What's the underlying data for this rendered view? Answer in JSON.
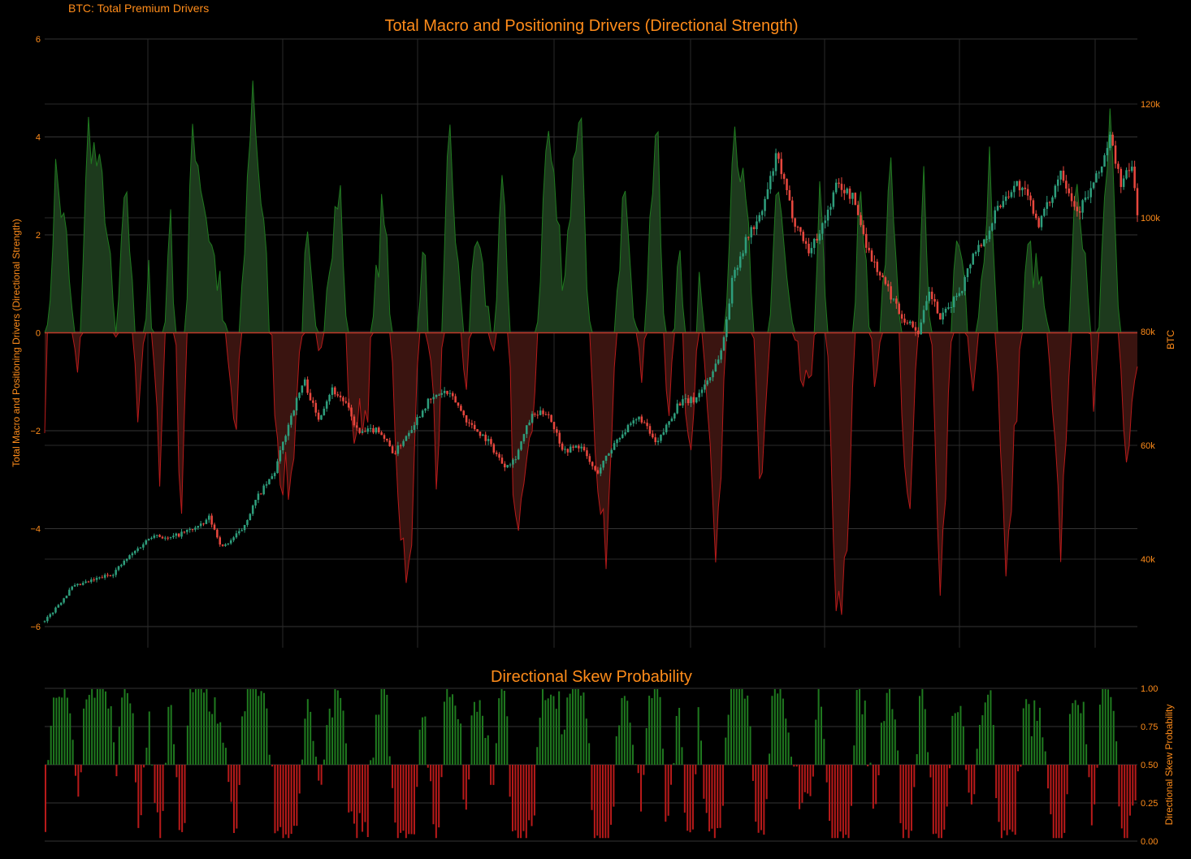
{
  "header": {
    "label": "BTC: Total Premium Drivers"
  },
  "colors": {
    "background": "#000000",
    "text": "#ff8c1a",
    "grid": "#333333",
    "positive": "#1f7a1f",
    "positive_fill": "#1d3a1d",
    "negative": "#b81a1a",
    "negative_fill": "#3a1410",
    "candle_up": "#2e9e7c",
    "candle_down": "#e8473e",
    "zero_line": "#c0392b"
  },
  "chart_data": [
    {
      "type": "area",
      "title": "Total Macro and Positioning Drivers (Directional Strength)",
      "ylabel": "Total Macro and Positioning Drivers (Directional Strength)",
      "ylim": [
        -6,
        6
      ],
      "yticks": [
        6,
        4,
        2,
        0,
        -2,
        -4,
        -6
      ],
      "ytick_labels": [
        "6",
        "4",
        "2",
        "0",
        "−2",
        "−4",
        "−6"
      ],
      "x_gridlines": 8,
      "n_points": 400,
      "anchors": [
        [
          0,
          -1.5
        ],
        [
          4,
          3.3
        ],
        [
          8,
          1.8
        ],
        [
          12,
          -1.2
        ],
        [
          16,
          4.2
        ],
        [
          22,
          2.7
        ],
        [
          26,
          -0.3
        ],
        [
          30,
          3.1
        ],
        [
          34,
          -1.5
        ],
        [
          38,
          1.1
        ],
        [
          42,
          -2.8
        ],
        [
          46,
          2.8
        ],
        [
          50,
          -3.8
        ],
        [
          54,
          4.3
        ],
        [
          60,
          2.1
        ],
        [
          64,
          0.9
        ],
        [
          70,
          -2.2
        ],
        [
          76,
          5.2
        ],
        [
          82,
          0.6
        ],
        [
          86,
          -2.7
        ],
        [
          90,
          -3.2
        ],
        [
          96,
          1.8
        ],
        [
          100,
          -0.8
        ],
        [
          104,
          1.6
        ],
        [
          108,
          3.1
        ],
        [
          112,
          -2.1
        ],
        [
          118,
          -1.5
        ],
        [
          124,
          2.9
        ],
        [
          130,
          -3.8
        ],
        [
          134,
          -5.2
        ],
        [
          138,
          2.4
        ],
        [
          144,
          -3.3
        ],
        [
          148,
          4.3
        ],
        [
          154,
          -1.2
        ],
        [
          158,
          2.2
        ],
        [
          164,
          -0.4
        ],
        [
          168,
          3.2
        ],
        [
          172,
          -4.0
        ],
        [
          178,
          -2.5
        ],
        [
          184,
          4.3
        ],
        [
          190,
          1.1
        ],
        [
          196,
          4.9
        ],
        [
          202,
          -3.6
        ],
        [
          206,
          -4.4
        ],
        [
          212,
          3.8
        ],
        [
          218,
          -1.2
        ],
        [
          224,
          4.5
        ],
        [
          228,
          -2.2
        ],
        [
          232,
          2.1
        ],
        [
          236,
          -3.1
        ],
        [
          240,
          1.6
        ],
        [
          246,
          -5.1
        ],
        [
          252,
          4.6
        ],
        [
          258,
          1.8
        ],
        [
          262,
          -3.8
        ],
        [
          268,
          3.2
        ],
        [
          274,
          -0.4
        ],
        [
          280,
          -1.5
        ],
        [
          284,
          3.0
        ],
        [
          290,
          -5.8
        ],
        [
          294,
          -4.7
        ],
        [
          298,
          3.0
        ],
        [
          304,
          -1.2
        ],
        [
          310,
          3.4
        ],
        [
          316,
          -4.0
        ],
        [
          322,
          3.2
        ],
        [
          328,
          -5.2
        ],
        [
          334,
          2.5
        ],
        [
          340,
          -1.6
        ],
        [
          346,
          3.8
        ],
        [
          352,
          -5.3
        ],
        [
          356,
          -1.2
        ],
        [
          360,
          1.7
        ],
        [
          366,
          0.6
        ],
        [
          372,
          -4.4
        ],
        [
          378,
          3.6
        ],
        [
          384,
          -1.4
        ],
        [
          390,
          4.8
        ],
        [
          396,
          -2.8
        ],
        [
          400,
          -0.7
        ]
      ],
      "candles": {
        "series": "BTC",
        "ylabel": "BTC",
        "ylim": [
          27000,
          133000
        ],
        "yticks": [
          40000,
          60000,
          80000,
          100000,
          120000
        ],
        "ytick_labels": [
          "40k",
          "60k",
          "80k",
          "100k",
          "120k"
        ],
        "n_candles": 400,
        "anchors": [
          [
            0,
            29000
          ],
          [
            10,
            35000
          ],
          [
            25,
            37500
          ],
          [
            30,
            40000
          ],
          [
            40,
            44500
          ],
          [
            45,
            43500
          ],
          [
            55,
            45500
          ],
          [
            58,
            46000
          ],
          [
            60,
            47500
          ],
          [
            65,
            42000
          ],
          [
            72,
            45000
          ],
          [
            78,
            51000
          ],
          [
            84,
            55000
          ],
          [
            90,
            65000
          ],
          [
            95,
            71500
          ],
          [
            100,
            64500
          ],
          [
            105,
            70000
          ],
          [
            110,
            67500
          ],
          [
            115,
            62000
          ],
          [
            122,
            63000
          ],
          [
            128,
            58500
          ],
          [
            134,
            63000
          ],
          [
            140,
            67500
          ],
          [
            146,
            69500
          ],
          [
            150,
            68000
          ],
          [
            155,
            64000
          ],
          [
            162,
            61000
          ],
          [
            168,
            56500
          ],
          [
            172,
            57500
          ],
          [
            178,
            65000
          ],
          [
            184,
            66000
          ],
          [
            190,
            59000
          ],
          [
            196,
            60000
          ],
          [
            202,
            55000
          ],
          [
            210,
            61500
          ],
          [
            218,
            65000
          ],
          [
            224,
            60000
          ],
          [
            232,
            67500
          ],
          [
            238,
            68000
          ],
          [
            244,
            72500
          ],
          [
            248,
            77000
          ],
          [
            252,
            90000
          ],
          [
            258,
            97500
          ],
          [
            262,
            100000
          ],
          [
            268,
            111000
          ],
          [
            274,
            100000
          ],
          [
            280,
            94000
          ],
          [
            286,
            100000
          ],
          [
            290,
            106000
          ],
          [
            296,
            103500
          ],
          [
            302,
            93500
          ],
          [
            308,
            88000
          ],
          [
            314,
            82500
          ],
          [
            320,
            80000
          ],
          [
            324,
            87000
          ],
          [
            328,
            82000
          ],
          [
            332,
            85000
          ],
          [
            336,
            88000
          ],
          [
            340,
            94000
          ],
          [
            344,
            96000
          ],
          [
            348,
            101000
          ],
          [
            352,
            104000
          ],
          [
            356,
            106000
          ],
          [
            360,
            103500
          ],
          [
            364,
            99000
          ],
          [
            368,
            103000
          ],
          [
            372,
            108500
          ],
          [
            378,
            101000
          ],
          [
            382,
            104000
          ],
          [
            386,
            108000
          ],
          [
            390,
            114000
          ],
          [
            394,
            106000
          ],
          [
            398,
            109000
          ],
          [
            400,
            101000
          ]
        ]
      }
    },
    {
      "type": "bar",
      "title": "Directional Skew Probability",
      "ylabel": "Directional Skew Probability",
      "ylim": [
        0,
        1
      ],
      "baseline": 0.5,
      "yticks": [
        1.0,
        0.75,
        0.5,
        0.25,
        0.0
      ],
      "ytick_labels": [
        "1.00",
        "0.75",
        "0.50",
        "0.25",
        "0.00"
      ],
      "n_bars": 400
    }
  ]
}
